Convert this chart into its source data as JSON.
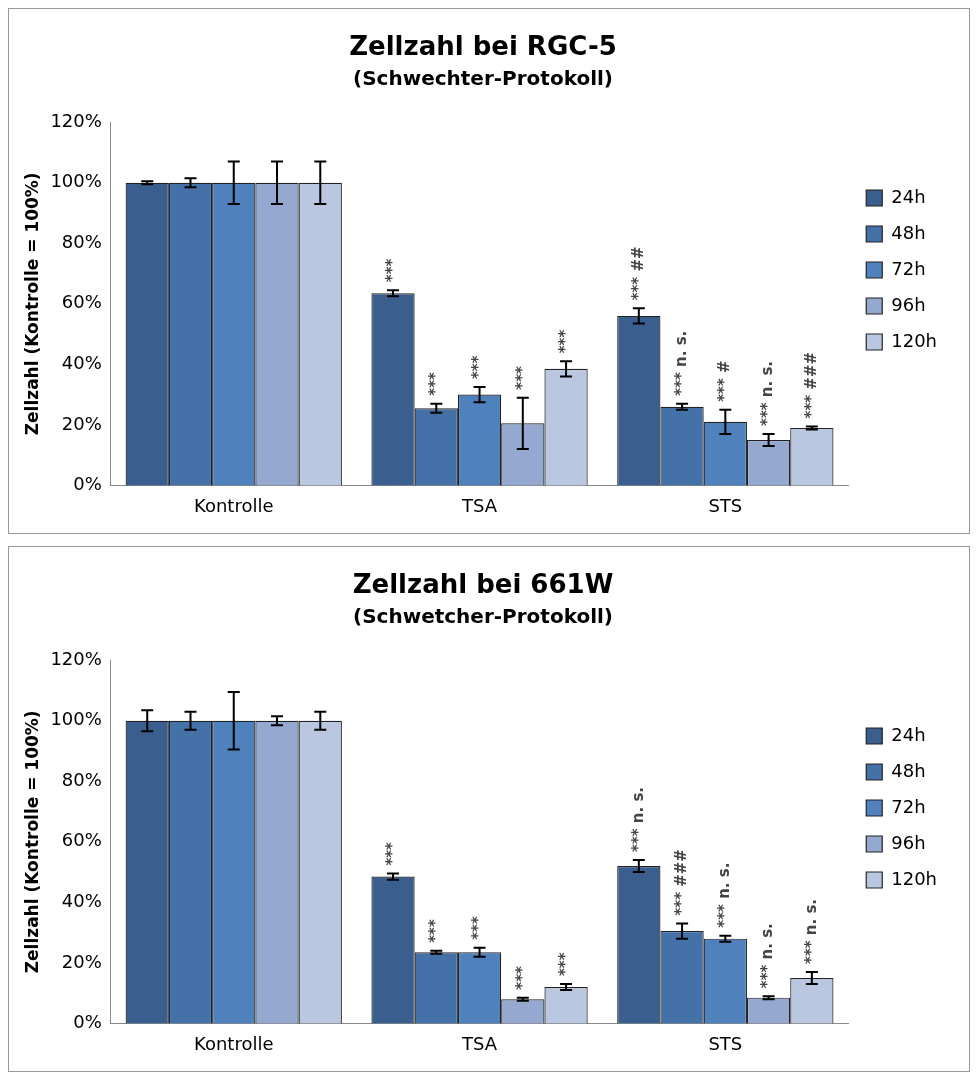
{
  "chart_data": [
    {
      "type": "bar",
      "title": "Zellzahl bei RGC-5",
      "subtitle": "(Schwechter-Protokoll)",
      "ylabel": "Zellzahl (Kontrolle = 100%)",
      "categories": [
        "Kontrolle",
        "TSA",
        "STS"
      ],
      "ylim": [
        0,
        120
      ],
      "yticks": [
        {
          "value": 0,
          "label": "0%"
        },
        {
          "value": 20,
          "label": "20%"
        },
        {
          "value": 40,
          "label": "40%"
        },
        {
          "value": 60,
          "label": "60%"
        },
        {
          "value": 80,
          "label": "80%"
        },
        {
          "value": 100,
          "label": "100%"
        },
        {
          "value": 120,
          "label": "120%"
        }
      ],
      "grid": false,
      "legend": "right",
      "series": [
        {
          "name": "24h",
          "color": "#3a5f8f",
          "values": [
            100,
            63.5,
            56
          ],
          "errors": [
            0.5,
            1,
            2.5
          ],
          "value_labels": [
            null,
            "***",
            "*** ##"
          ]
        },
        {
          "name": "48h",
          "color": "#4472a8",
          "values": [
            100,
            25.5,
            26
          ],
          "errors": [
            1.5,
            1.5,
            1
          ],
          "value_labels": [
            null,
            "***",
            "*** n. s."
          ]
        },
        {
          "name": "72h",
          "color": "#4f81bd",
          "values": [
            100,
            30,
            21
          ],
          "errors": [
            7,
            2.5,
            4
          ],
          "value_labels": [
            null,
            "***",
            "*** #"
          ]
        },
        {
          "name": "96h",
          "color": "#95a9d0",
          "values": [
            100,
            20.5,
            15
          ],
          "errors": [
            7,
            8.5,
            2
          ],
          "value_labels": [
            null,
            "***",
            "*** n. s."
          ]
        },
        {
          "name": "120h",
          "color": "#b9c7e0",
          "values": [
            100,
            38.5,
            19
          ],
          "errors": [
            7,
            2.5,
            0.5
          ],
          "value_labels": [
            null,
            "***",
            "*** ###"
          ]
        }
      ]
    },
    {
      "type": "bar",
      "title": "Zellzahl bei 661W",
      "subtitle": "(Schwetcher-Protokoll)",
      "ylabel": "Zellzahl (Kontrolle = 100%)",
      "categories": [
        "Kontrolle",
        "TSA",
        "STS"
      ],
      "ylim": [
        0,
        120
      ],
      "yticks": [
        {
          "value": 0,
          "label": "0%"
        },
        {
          "value": 20,
          "label": "20%"
        },
        {
          "value": 40,
          "label": "40%"
        },
        {
          "value": 60,
          "label": "60%"
        },
        {
          "value": 80,
          "label": "80%"
        },
        {
          "value": 100,
          "label": "100%"
        },
        {
          "value": 120,
          "label": "120%"
        }
      ],
      "grid": false,
      "legend": "right",
      "series": [
        {
          "name": "24h",
          "color": "#3a5f8f",
          "values": [
            100,
            48.5,
            52
          ],
          "errors": [
            3.5,
            1,
            2
          ],
          "value_labels": [
            null,
            "***",
            "*** n. s."
          ]
        },
        {
          "name": "48h",
          "color": "#4472a8",
          "values": [
            100,
            23.5,
            30.5
          ],
          "errors": [
            3,
            0.5,
            2.5
          ],
          "value_labels": [
            null,
            "***",
            "*** ###"
          ]
        },
        {
          "name": "72h",
          "color": "#4f81bd",
          "values": [
            100,
            23.5,
            28
          ],
          "errors": [
            9.5,
            1.5,
            1
          ],
          "value_labels": [
            null,
            "***",
            "*** n. s."
          ]
        },
        {
          "name": "96h",
          "color": "#95a9d0",
          "values": [
            100,
            8,
            8.5
          ],
          "errors": [
            1.5,
            0.5,
            0.5
          ],
          "value_labels": [
            null,
            "***",
            "*** n. s."
          ]
        },
        {
          "name": "120h",
          "color": "#b9c7e0",
          "values": [
            100,
            12,
            15
          ],
          "errors": [
            3,
            1,
            2
          ],
          "value_labels": [
            null,
            "***",
            "*** n. s."
          ]
        }
      ]
    }
  ]
}
